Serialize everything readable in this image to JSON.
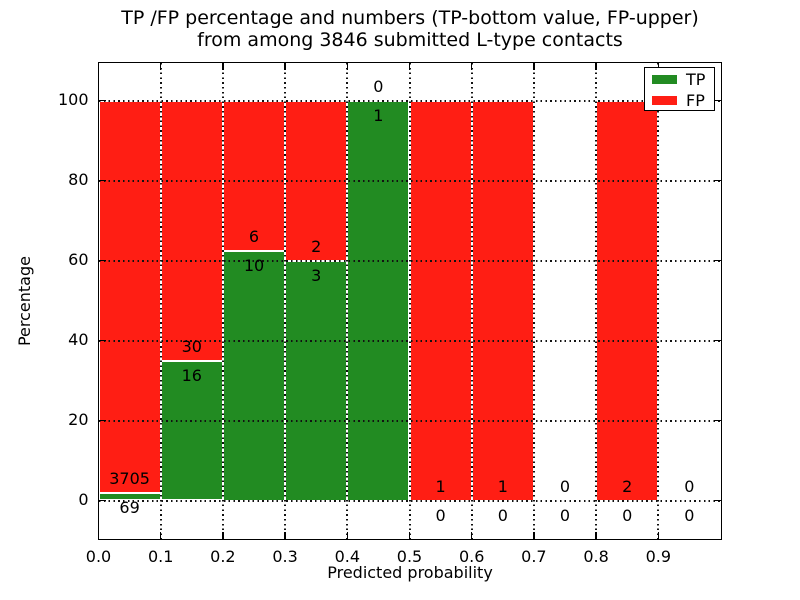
{
  "chart_data": {
    "type": "bar",
    "stacked": true,
    "title_line1": "TP /FP percentage and numbers (TP-bottom value, FP-upper)",
    "title_line2": "from among 3846 submitted L-type contacts",
    "xlabel": "Predicted probability",
    "ylabel": "Percentage",
    "x_ticks": [
      "0.0",
      "0.1",
      "0.2",
      "0.3",
      "0.4",
      "0.5",
      "0.6",
      "0.7",
      "0.8",
      "0.9"
    ],
    "y_ticks": [
      "0",
      "20",
      "40",
      "60",
      "80",
      "100"
    ],
    "xlim": [
      0.0,
      1.0
    ],
    "ylim": [
      -10,
      110
    ],
    "grid": true,
    "colors": {
      "tp": "#228B22",
      "fp": "#FF1E14",
      "frame": "#000000"
    },
    "legend": {
      "position": "upper right",
      "entries": [
        {
          "label": "TP",
          "color_key": "tp"
        },
        {
          "label": "FP",
          "color_key": "fp"
        }
      ]
    },
    "bins": [
      {
        "range": [
          0.0,
          0.1
        ],
        "tp_count": 69,
        "fp_count": 3705,
        "tp_pct": 1.83,
        "fp_pct": 98.17
      },
      {
        "range": [
          0.1,
          0.2
        ],
        "tp_count": 16,
        "fp_count": 30,
        "tp_pct": 34.78,
        "fp_pct": 65.22
      },
      {
        "range": [
          0.2,
          0.3
        ],
        "tp_count": 10,
        "fp_count": 6,
        "tp_pct": 62.5,
        "fp_pct": 37.5
      },
      {
        "range": [
          0.3,
          0.4
        ],
        "tp_count": 3,
        "fp_count": 2,
        "tp_pct": 60.0,
        "fp_pct": 40.0
      },
      {
        "range": [
          0.4,
          0.5
        ],
        "tp_count": 1,
        "fp_count": 0,
        "tp_pct": 100.0,
        "fp_pct": 0.0
      },
      {
        "range": [
          0.5,
          0.6
        ],
        "tp_count": 0,
        "fp_count": 1,
        "tp_pct": 0.0,
        "fp_pct": 100.0
      },
      {
        "range": [
          0.6,
          0.7
        ],
        "tp_count": 0,
        "fp_count": 1,
        "tp_pct": 0.0,
        "fp_pct": 100.0
      },
      {
        "range": [
          0.7,
          0.8
        ],
        "tp_count": 0,
        "fp_count": 0,
        "tp_pct": 0.0,
        "fp_pct": 0.0
      },
      {
        "range": [
          0.8,
          0.9
        ],
        "tp_count": 0,
        "fp_count": 2,
        "tp_pct": 0.0,
        "fp_pct": 100.0
      },
      {
        "range": [
          0.9,
          1.0
        ],
        "tp_count": 0,
        "fp_count": 0,
        "tp_pct": 0.0,
        "fp_pct": 0.0
      }
    ]
  }
}
